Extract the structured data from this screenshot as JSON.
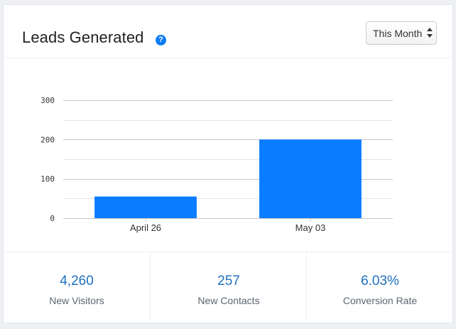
{
  "widget": {
    "title": "Leads Generated",
    "help_icon": "question-circle-icon",
    "period": {
      "selected": "This Month"
    }
  },
  "chart_data": {
    "type": "bar",
    "categories": [
      "April 26",
      "May 03"
    ],
    "values": [
      55,
      200
    ],
    "ylim": [
      0,
      300
    ],
    "yticks": [
      0,
      100,
      200,
      300
    ],
    "title": "",
    "xlabel": "",
    "ylabel": "",
    "bar_color": "#0a7cff",
    "grid": true
  },
  "stats": [
    {
      "value": "4,260",
      "label": "New Visitors"
    },
    {
      "value": "257",
      "label": "New Contacts"
    },
    {
      "value": "6.03%",
      "label": "Conversion Rate"
    }
  ],
  "colors": {
    "accent": "#0a7cff",
    "stat_value": "#1f6fbf"
  }
}
